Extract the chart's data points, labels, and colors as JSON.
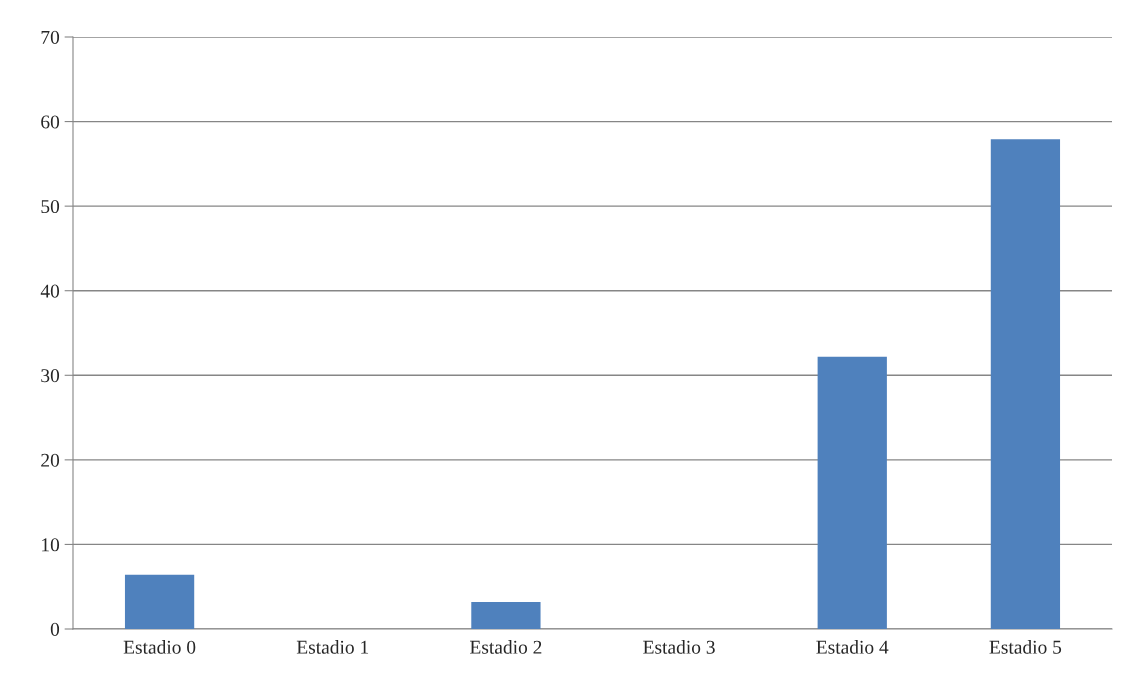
{
  "chart_data": {
    "type": "bar",
    "categories": [
      "Estadio 0",
      "Estadio 1",
      "Estadio 2",
      "Estadio 3",
      "Estadio 4",
      "Estadio 5"
    ],
    "values": [
      6.4,
      0,
      3.2,
      0,
      32.2,
      57.9
    ],
    "color": "#4f81bd",
    "ylim": [
      0,
      70
    ],
    "yticks": [
      0,
      10,
      20,
      30,
      40,
      50,
      60,
      70
    ],
    "grid": "y",
    "legend": false
  }
}
